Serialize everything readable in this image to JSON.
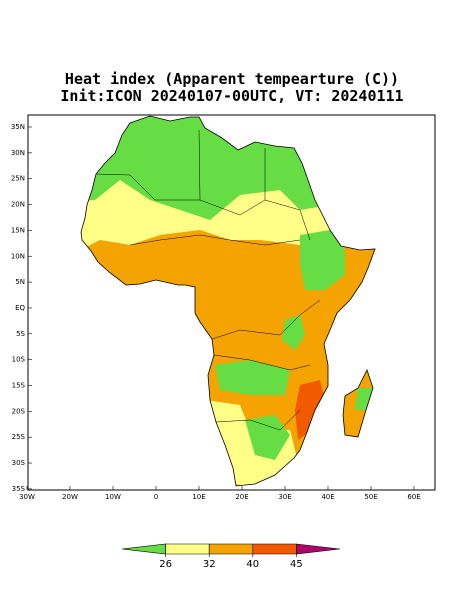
{
  "title": {
    "line1": "Heat index (Apparent tempearture (C))",
    "line2": "Init:ICON 20240107-00UTC, VT: 20240111"
  },
  "map": {
    "lat_labels": [
      "35N",
      "30N",
      "25N",
      "20N",
      "15N",
      "10N",
      "5N",
      "EQ",
      "5S",
      "10S",
      "15S",
      "20S",
      "25S",
      "30S",
      "35S"
    ],
    "lon_labels": [
      "30W",
      "20W",
      "10W",
      "0",
      "10E",
      "20E",
      "30E",
      "40E",
      "50E",
      "60E"
    ]
  },
  "colorbar": {
    "colors": [
      "#66dd44",
      "#ffff88",
      "#f5a300",
      "#f25a00",
      "#b0006a"
    ],
    "ticks": [
      26,
      32,
      40,
      45
    ]
  }
}
